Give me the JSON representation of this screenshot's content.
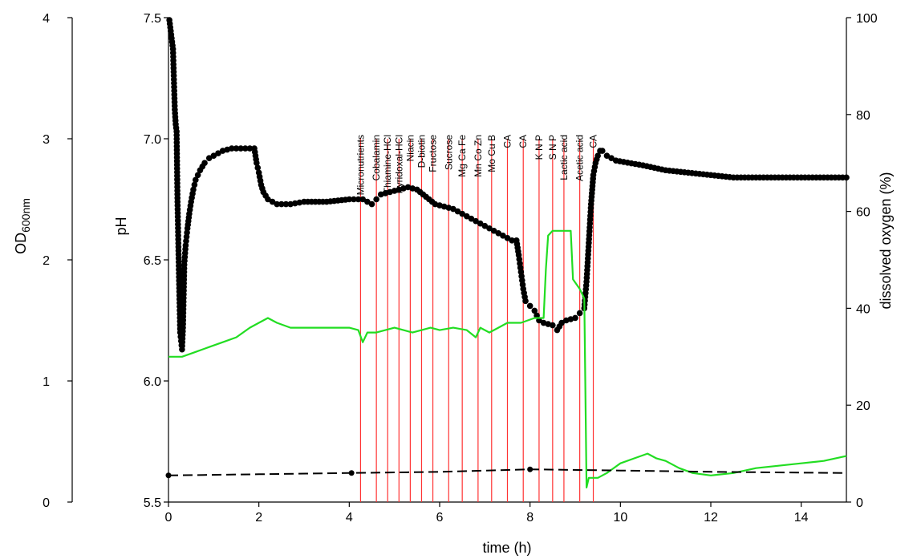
{
  "chart_data": {
    "type": "scatter",
    "xlabel": "time (h)",
    "xlim": [
      0,
      15
    ],
    "x_ticks": [
      "0",
      "2",
      "4",
      "6",
      "8",
      "10",
      "12",
      "14"
    ],
    "axes": {
      "od": {
        "label_main": "OD",
        "label_sub": "600nm",
        "lim": [
          0,
          4
        ],
        "ticks": [
          "0",
          "1",
          "2",
          "3",
          "4"
        ]
      },
      "ph": {
        "label": "pH",
        "lim": [
          5.5,
          7.5
        ],
        "ticks": [
          "5.5",
          "6.0",
          "6.5",
          "7.0",
          "7.5"
        ]
      },
      "do": {
        "label": "dissolved oxygen (%)",
        "lim": [
          0,
          100
        ],
        "ticks": [
          "0",
          "20",
          "40",
          "60",
          "80",
          "100"
        ]
      }
    },
    "colors": {
      "ph": "#000000",
      "dissolved_oxygen": "#22dd22",
      "od": "#000000",
      "events": "#ff3333"
    },
    "events": [
      {
        "t": 4.25,
        "label": "Micronutrients"
      },
      {
        "t": 4.6,
        "label": "Cobalamin"
      },
      {
        "t": 4.85,
        "label": "Thiamine-HCl"
      },
      {
        "t": 5.1,
        "label": "Pyridoxal-HCl"
      },
      {
        "t": 5.35,
        "label": "Niacin"
      },
      {
        "t": 5.6,
        "label": "D-biotin"
      },
      {
        "t": 5.85,
        "label": "Fructose"
      },
      {
        "t": 6.2,
        "label": "Sucrose"
      },
      {
        "t": 6.5,
        "label": "Mg Ca Fe"
      },
      {
        "t": 6.85,
        "label": "Mn Co Zn"
      },
      {
        "t": 7.15,
        "label": "Mo Cu B"
      },
      {
        "t": 7.5,
        "label": "CA"
      },
      {
        "t": 7.85,
        "label": "CA"
      },
      {
        "t": 8.2,
        "label": "K N P"
      },
      {
        "t": 8.5,
        "label": "S N P"
      },
      {
        "t": 8.75,
        "label": "Lactic acid"
      },
      {
        "t": 9.1,
        "label": "Acetic acid"
      },
      {
        "t": 9.4,
        "label": "CA"
      }
    ],
    "series": [
      {
        "key": "ph",
        "style": "dots",
        "points": [
          [
            0.02,
            7.49
          ],
          [
            0.1,
            7.37
          ],
          [
            0.14,
            7.12
          ],
          [
            0.16,
            7.06
          ],
          [
            0.18,
            7.03
          ],
          [
            0.2,
            6.74
          ],
          [
            0.23,
            6.46
          ],
          [
            0.26,
            6.2
          ],
          [
            0.3,
            6.13
          ],
          [
            0.32,
            6.22
          ],
          [
            0.35,
            6.48
          ],
          [
            0.38,
            6.56
          ],
          [
            0.42,
            6.63
          ],
          [
            0.46,
            6.69
          ],
          [
            0.5,
            6.74
          ],
          [
            0.55,
            6.79
          ],
          [
            0.6,
            6.83
          ],
          [
            0.7,
            6.87
          ],
          [
            0.8,
            6.9
          ],
          [
            0.9,
            6.92
          ],
          [
            1.0,
            6.93
          ],
          [
            1.2,
            6.95
          ],
          [
            1.4,
            6.96
          ],
          [
            1.6,
            6.96
          ],
          [
            1.8,
            6.96
          ],
          [
            1.9,
            6.96
          ],
          [
            1.95,
            6.9
          ],
          [
            2.0,
            6.86
          ],
          [
            2.05,
            6.81
          ],
          [
            2.1,
            6.78
          ],
          [
            2.2,
            6.75
          ],
          [
            2.4,
            6.73
          ],
          [
            2.7,
            6.73
          ],
          [
            3.0,
            6.74
          ],
          [
            3.5,
            6.74
          ],
          [
            4.0,
            6.75
          ],
          [
            4.3,
            6.75
          ],
          [
            4.5,
            6.73
          ],
          [
            4.6,
            6.75
          ],
          [
            4.7,
            6.77
          ],
          [
            4.9,
            6.78
          ],
          [
            5.1,
            6.79
          ],
          [
            5.3,
            6.8
          ],
          [
            5.5,
            6.79
          ],
          [
            5.7,
            6.76
          ],
          [
            5.9,
            6.73
          ],
          [
            6.1,
            6.72
          ],
          [
            6.3,
            6.71
          ],
          [
            6.5,
            6.69
          ],
          [
            6.7,
            6.67
          ],
          [
            6.9,
            6.65
          ],
          [
            7.1,
            6.63
          ],
          [
            7.3,
            6.61
          ],
          [
            7.5,
            6.59
          ],
          [
            7.6,
            6.58
          ],
          [
            7.7,
            6.58
          ],
          [
            7.75,
            6.52
          ],
          [
            7.8,
            6.45
          ],
          [
            7.85,
            6.38
          ],
          [
            7.9,
            6.33
          ],
          [
            8.0,
            6.31
          ],
          [
            8.1,
            6.29
          ],
          [
            8.2,
            6.25
          ],
          [
            8.3,
            6.24
          ],
          [
            8.5,
            6.23
          ],
          [
            8.6,
            6.21
          ],
          [
            8.7,
            6.24
          ],
          [
            8.8,
            6.25
          ],
          [
            9.0,
            6.26
          ],
          [
            9.1,
            6.28
          ],
          [
            9.2,
            6.3
          ],
          [
            9.25,
            6.41
          ],
          [
            9.3,
            6.57
          ],
          [
            9.35,
            6.73
          ],
          [
            9.4,
            6.85
          ],
          [
            9.45,
            6.9
          ],
          [
            9.5,
            6.93
          ],
          [
            9.55,
            6.95
          ],
          [
            9.6,
            6.95
          ],
          [
            9.7,
            6.93
          ],
          [
            9.9,
            6.91
          ],
          [
            10.5,
            6.89
          ],
          [
            11.0,
            6.87
          ],
          [
            11.5,
            6.86
          ],
          [
            12.0,
            6.85
          ],
          [
            12.5,
            6.84
          ],
          [
            13.0,
            6.84
          ],
          [
            13.5,
            6.84
          ],
          [
            14.0,
            6.84
          ],
          [
            14.5,
            6.84
          ],
          [
            15.0,
            6.84
          ]
        ]
      },
      {
        "key": "dissolved_oxygen",
        "style": "line",
        "points": [
          [
            0.0,
            30
          ],
          [
            0.3,
            30
          ],
          [
            0.6,
            31
          ],
          [
            0.9,
            32
          ],
          [
            1.2,
            33
          ],
          [
            1.5,
            34
          ],
          [
            1.8,
            36
          ],
          [
            2.0,
            37
          ],
          [
            2.2,
            38
          ],
          [
            2.4,
            37
          ],
          [
            2.7,
            36
          ],
          [
            3.0,
            36
          ],
          [
            3.3,
            36
          ],
          [
            3.6,
            36
          ],
          [
            4.0,
            36
          ],
          [
            4.2,
            35.5
          ],
          [
            4.3,
            33
          ],
          [
            4.4,
            35
          ],
          [
            4.6,
            35
          ],
          [
            4.8,
            35.5
          ],
          [
            5.0,
            36
          ],
          [
            5.2,
            35.5
          ],
          [
            5.4,
            35
          ],
          [
            5.6,
            35.5
          ],
          [
            5.8,
            36
          ],
          [
            6.0,
            35.5
          ],
          [
            6.3,
            36
          ],
          [
            6.6,
            35.5
          ],
          [
            6.8,
            34
          ],
          [
            6.9,
            36
          ],
          [
            7.1,
            35
          ],
          [
            7.3,
            36
          ],
          [
            7.5,
            37
          ],
          [
            7.8,
            37
          ],
          [
            8.1,
            38
          ],
          [
            8.3,
            38
          ],
          [
            8.35,
            48
          ],
          [
            8.4,
            55
          ],
          [
            8.5,
            56
          ],
          [
            8.8,
            56
          ],
          [
            8.9,
            56
          ],
          [
            8.95,
            46
          ],
          [
            9.1,
            44
          ],
          [
            9.2,
            42
          ],
          [
            9.25,
            3
          ],
          [
            9.3,
            5
          ],
          [
            9.5,
            5
          ],
          [
            9.7,
            6
          ],
          [
            10.0,
            8
          ],
          [
            10.3,
            9
          ],
          [
            10.6,
            10
          ],
          [
            10.8,
            9
          ],
          [
            11.0,
            8.5
          ],
          [
            11.3,
            7
          ],
          [
            11.6,
            6
          ],
          [
            12.0,
            5.5
          ],
          [
            12.5,
            6
          ],
          [
            13.0,
            7
          ],
          [
            13.5,
            7.5
          ],
          [
            14.0,
            8
          ],
          [
            14.5,
            8.5
          ],
          [
            15.0,
            9.5
          ]
        ]
      },
      {
        "key": "od",
        "style": "dashed",
        "points": [
          [
            0.0,
            0.22
          ],
          [
            2.0,
            0.23
          ],
          [
            4.0,
            0.24
          ],
          [
            6.0,
            0.25
          ],
          [
            8.0,
            0.27
          ],
          [
            10.0,
            0.26
          ],
          [
            12.0,
            0.25
          ],
          [
            15.0,
            0.24
          ]
        ],
        "markers": [
          [
            0.0,
            0.22
          ],
          [
            4.05,
            0.24
          ],
          [
            8.0,
            0.27
          ]
        ]
      }
    ]
  }
}
